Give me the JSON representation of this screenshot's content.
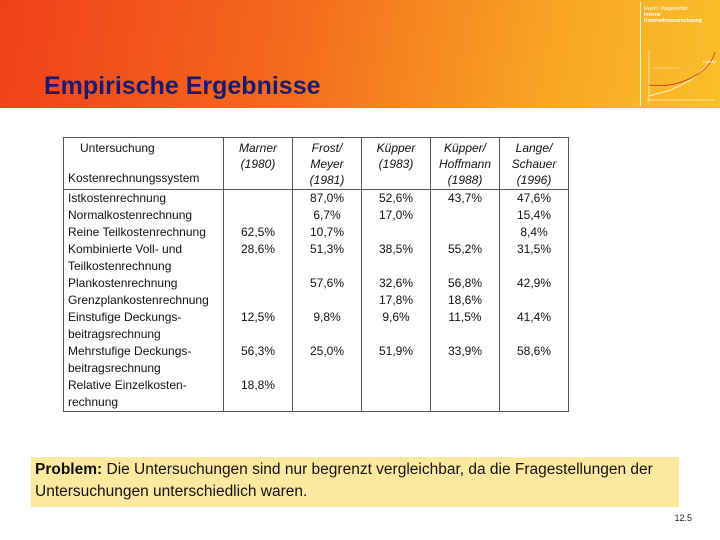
{
  "header": {
    "title": "Empirische Ergebnisse",
    "logo": {
      "line1": "Ewert / Wagenhofer",
      "line2": "Interne",
      "line3": "Unternehmensrechnung",
      "graph_note": "Fußnote"
    },
    "colors": {
      "gradient_start": "#f0401a",
      "gradient_end": "#f9c02a",
      "title": "#1b1b6e"
    }
  },
  "table": {
    "corner_top": "Untersuchung",
    "corner_bottom": "Kostenrechnungssystem",
    "columns": [
      {
        "line1": "Marner",
        "line2": "(1980)",
        "line3": ""
      },
      {
        "line1": "Frost/",
        "line2": "Meyer",
        "line3": "(1981)"
      },
      {
        "line1": "Küpper",
        "line2": "(1983)",
        "line3": ""
      },
      {
        "line1": "Küpper/",
        "line2": "Hoffmann",
        "line3": "(1988)"
      },
      {
        "line1": "Lange/",
        "line2": "Schauer",
        "line3": "(1996)"
      }
    ],
    "rows": [
      {
        "label": "Istkostenrechnung",
        "values": [
          "",
          "87,0%",
          "52,6%",
          "43,7%",
          "47,6%"
        ]
      },
      {
        "label": "Normalkostenrechnung",
        "values": [
          "",
          "6,7%",
          "17,0%",
          "",
          "15,4%"
        ]
      },
      {
        "label": "Reine Teilkostenrechnung",
        "values": [
          "62,5%",
          "10,7%",
          "",
          "",
          "8,4%"
        ]
      },
      {
        "label": "Kombinierte Voll- und Teilkostenrechnung",
        "values": [
          "28,6%",
          "51,3%",
          "38,5%",
          "55,2%",
          "31,5%"
        ]
      },
      {
        "label": "Plankostenrechnung",
        "values": [
          "",
          "57,6%",
          "32,6%",
          "56,8%",
          "42,9%"
        ]
      },
      {
        "label": "Grenzplankostenrechnung",
        "values": [
          "",
          "",
          "17,8%",
          "18,6%",
          ""
        ]
      },
      {
        "label": "Einstufige Deckungs-beitragsrechnung",
        "values": [
          "12,5%",
          "9,8%",
          "9,6%",
          "11,5%",
          "41,4%"
        ]
      },
      {
        "label": "Mehrstufige Deckungs-beitragsrechnung",
        "values": [
          "56,3%",
          "25,0%",
          "51,9%",
          "33,9%",
          "58,6%"
        ]
      },
      {
        "label": "Relative Einzelkosten-rechnung",
        "values": [
          "18,8%",
          "",
          "",
          "",
          ""
        ]
      }
    ]
  },
  "problem": {
    "label": "Problem:",
    "text": " Die Untersuchungen sind nur begrenzt vergleichbar, da die Fragestellungen der Untersuchungen unterschiedlich waren."
  },
  "page_number": "12.5"
}
